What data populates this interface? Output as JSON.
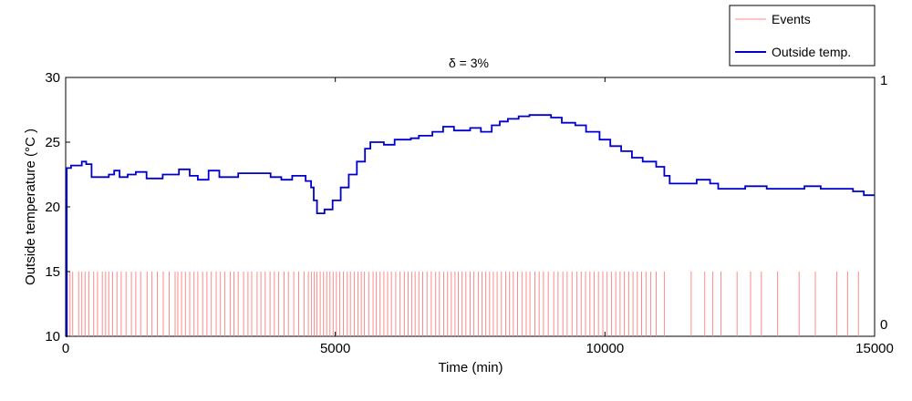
{
  "chart_data": {
    "type": "line",
    "title": "δ = 3%",
    "xlabel": "Time (min)",
    "ylabel": "Outside temperature (°C )",
    "xlim": [
      0,
      15000
    ],
    "ylim": [
      10,
      30
    ],
    "y2lim": [
      0,
      1
    ],
    "grid": false,
    "legend": {
      "placement": "top-right",
      "entries": [
        "Events",
        "Outside temp."
      ]
    },
    "x_ticks": [
      "0",
      "5000",
      "10000",
      "15000"
    ],
    "x_tick_values": [
      0,
      5000,
      10000,
      15000
    ],
    "y_ticks": [
      "10",
      "15",
      "20",
      "25",
      "30"
    ],
    "y_tick_values": [
      10,
      15,
      20,
      25,
      30
    ],
    "y2_ticks": [
      "0",
      "1"
    ],
    "y2_tick_values": [
      0,
      1
    ],
    "series": [
      {
        "name": "Outside temp.",
        "color": "#0000cc",
        "axis": "left",
        "points": [
          [
            0,
            10
          ],
          [
            20,
            23
          ],
          [
            100,
            23.2
          ],
          [
            300,
            23.5
          ],
          [
            380,
            23.3
          ],
          [
            480,
            22.3
          ],
          [
            800,
            22.5
          ],
          [
            900,
            22.8
          ],
          [
            1000,
            22.3
          ],
          [
            1150,
            22.5
          ],
          [
            1300,
            22.7
          ],
          [
            1500,
            22.2
          ],
          [
            1800,
            22.5
          ],
          [
            2100,
            22.9
          ],
          [
            2300,
            22.4
          ],
          [
            2450,
            22.1
          ],
          [
            2650,
            22.8
          ],
          [
            2850,
            22.3
          ],
          [
            3200,
            22.6
          ],
          [
            3600,
            22.6
          ],
          [
            3800,
            22.3
          ],
          [
            4000,
            22.1
          ],
          [
            4200,
            22.4
          ],
          [
            4450,
            22
          ],
          [
            4550,
            21.5
          ],
          [
            4600,
            20.5
          ],
          [
            4660,
            19.5
          ],
          [
            4800,
            19.8
          ],
          [
            4950,
            20.5
          ],
          [
            5100,
            21.5
          ],
          [
            5250,
            22.5
          ],
          [
            5400,
            23.5
          ],
          [
            5550,
            24.5
          ],
          [
            5650,
            25
          ],
          [
            5900,
            24.8
          ],
          [
            6100,
            25.2
          ],
          [
            6400,
            25.3
          ],
          [
            6550,
            25.5
          ],
          [
            6800,
            25.8
          ],
          [
            7000,
            26.2
          ],
          [
            7200,
            25.9
          ],
          [
            7500,
            26.1
          ],
          [
            7700,
            25.8
          ],
          [
            7900,
            26.3
          ],
          [
            8050,
            26.6
          ],
          [
            8200,
            26.8
          ],
          [
            8400,
            27
          ],
          [
            8600,
            27.1
          ],
          [
            8800,
            27.1
          ],
          [
            9000,
            26.9
          ],
          [
            9200,
            26.5
          ],
          [
            9450,
            26.3
          ],
          [
            9650,
            25.8
          ],
          [
            9900,
            25.2
          ],
          [
            10100,
            24.7
          ],
          [
            10300,
            24.3
          ],
          [
            10500,
            23.8
          ],
          [
            10700,
            23.5
          ],
          [
            10950,
            23.1
          ],
          [
            11100,
            22.4
          ],
          [
            11200,
            21.8
          ],
          [
            11500,
            21.8
          ],
          [
            11700,
            22.1
          ],
          [
            11950,
            21.8
          ],
          [
            12100,
            21.4
          ],
          [
            12400,
            21.4
          ],
          [
            12600,
            21.6
          ],
          [
            13000,
            21.4
          ],
          [
            13500,
            21.4
          ],
          [
            13700,
            21.6
          ],
          [
            14000,
            21.4
          ],
          [
            14400,
            21.4
          ],
          [
            14600,
            21.2
          ],
          [
            14800,
            20.9
          ],
          [
            15000,
            20.9
          ]
        ]
      },
      {
        "name": "Events",
        "color": "#ff8a8a",
        "axis": "right",
        "event_level": 0.25,
        "times": [
          30,
          80,
          130,
          240,
          300,
          360,
          430,
          520,
          590,
          680,
          740,
          800,
          870,
          950,
          1030,
          1120,
          1220,
          1300,
          1390,
          1510,
          1600,
          1700,
          1810,
          1920,
          2030,
          2080,
          2150,
          2220,
          2300,
          2380,
          2450,
          2540,
          2620,
          2700,
          2790,
          2870,
          2950,
          3050,
          3120,
          3200,
          3300,
          3380,
          3450,
          3550,
          3620,
          3700,
          3790,
          3870,
          3950,
          4050,
          4130,
          4230,
          4320,
          4420,
          4500,
          4560,
          4610,
          4660,
          4720,
          4780,
          4840,
          4900,
          4960,
          5020,
          5080,
          5150,
          5220,
          5280,
          5350,
          5420,
          5480,
          5540,
          5620,
          5700,
          5760,
          5830,
          5900,
          5970,
          6040,
          6120,
          6200,
          6280,
          6350,
          6420,
          6480,
          6550,
          6620,
          6700,
          6780,
          6860,
          6930,
          7010,
          7080,
          7150,
          7220,
          7280,
          7350,
          7420,
          7500,
          7570,
          7650,
          7720,
          7790,
          7860,
          7930,
          8000,
          8080,
          8160,
          8230,
          8300,
          8380,
          8460,
          8540,
          8610,
          8700,
          8780,
          8860,
          8950,
          9050,
          9130,
          9220,
          9300,
          9390,
          9480,
          9560,
          9640,
          9720,
          9800,
          9880,
          9960,
          10040,
          10120,
          10200,
          10280,
          10360,
          10440,
          10520,
          10600,
          10680,
          10760,
          10850,
          10950,
          11100,
          11600,
          11850,
          12000,
          12150,
          12450,
          12700,
          12900,
          13200,
          13600,
          13900,
          14300,
          14500,
          14700
        ]
      }
    ]
  }
}
